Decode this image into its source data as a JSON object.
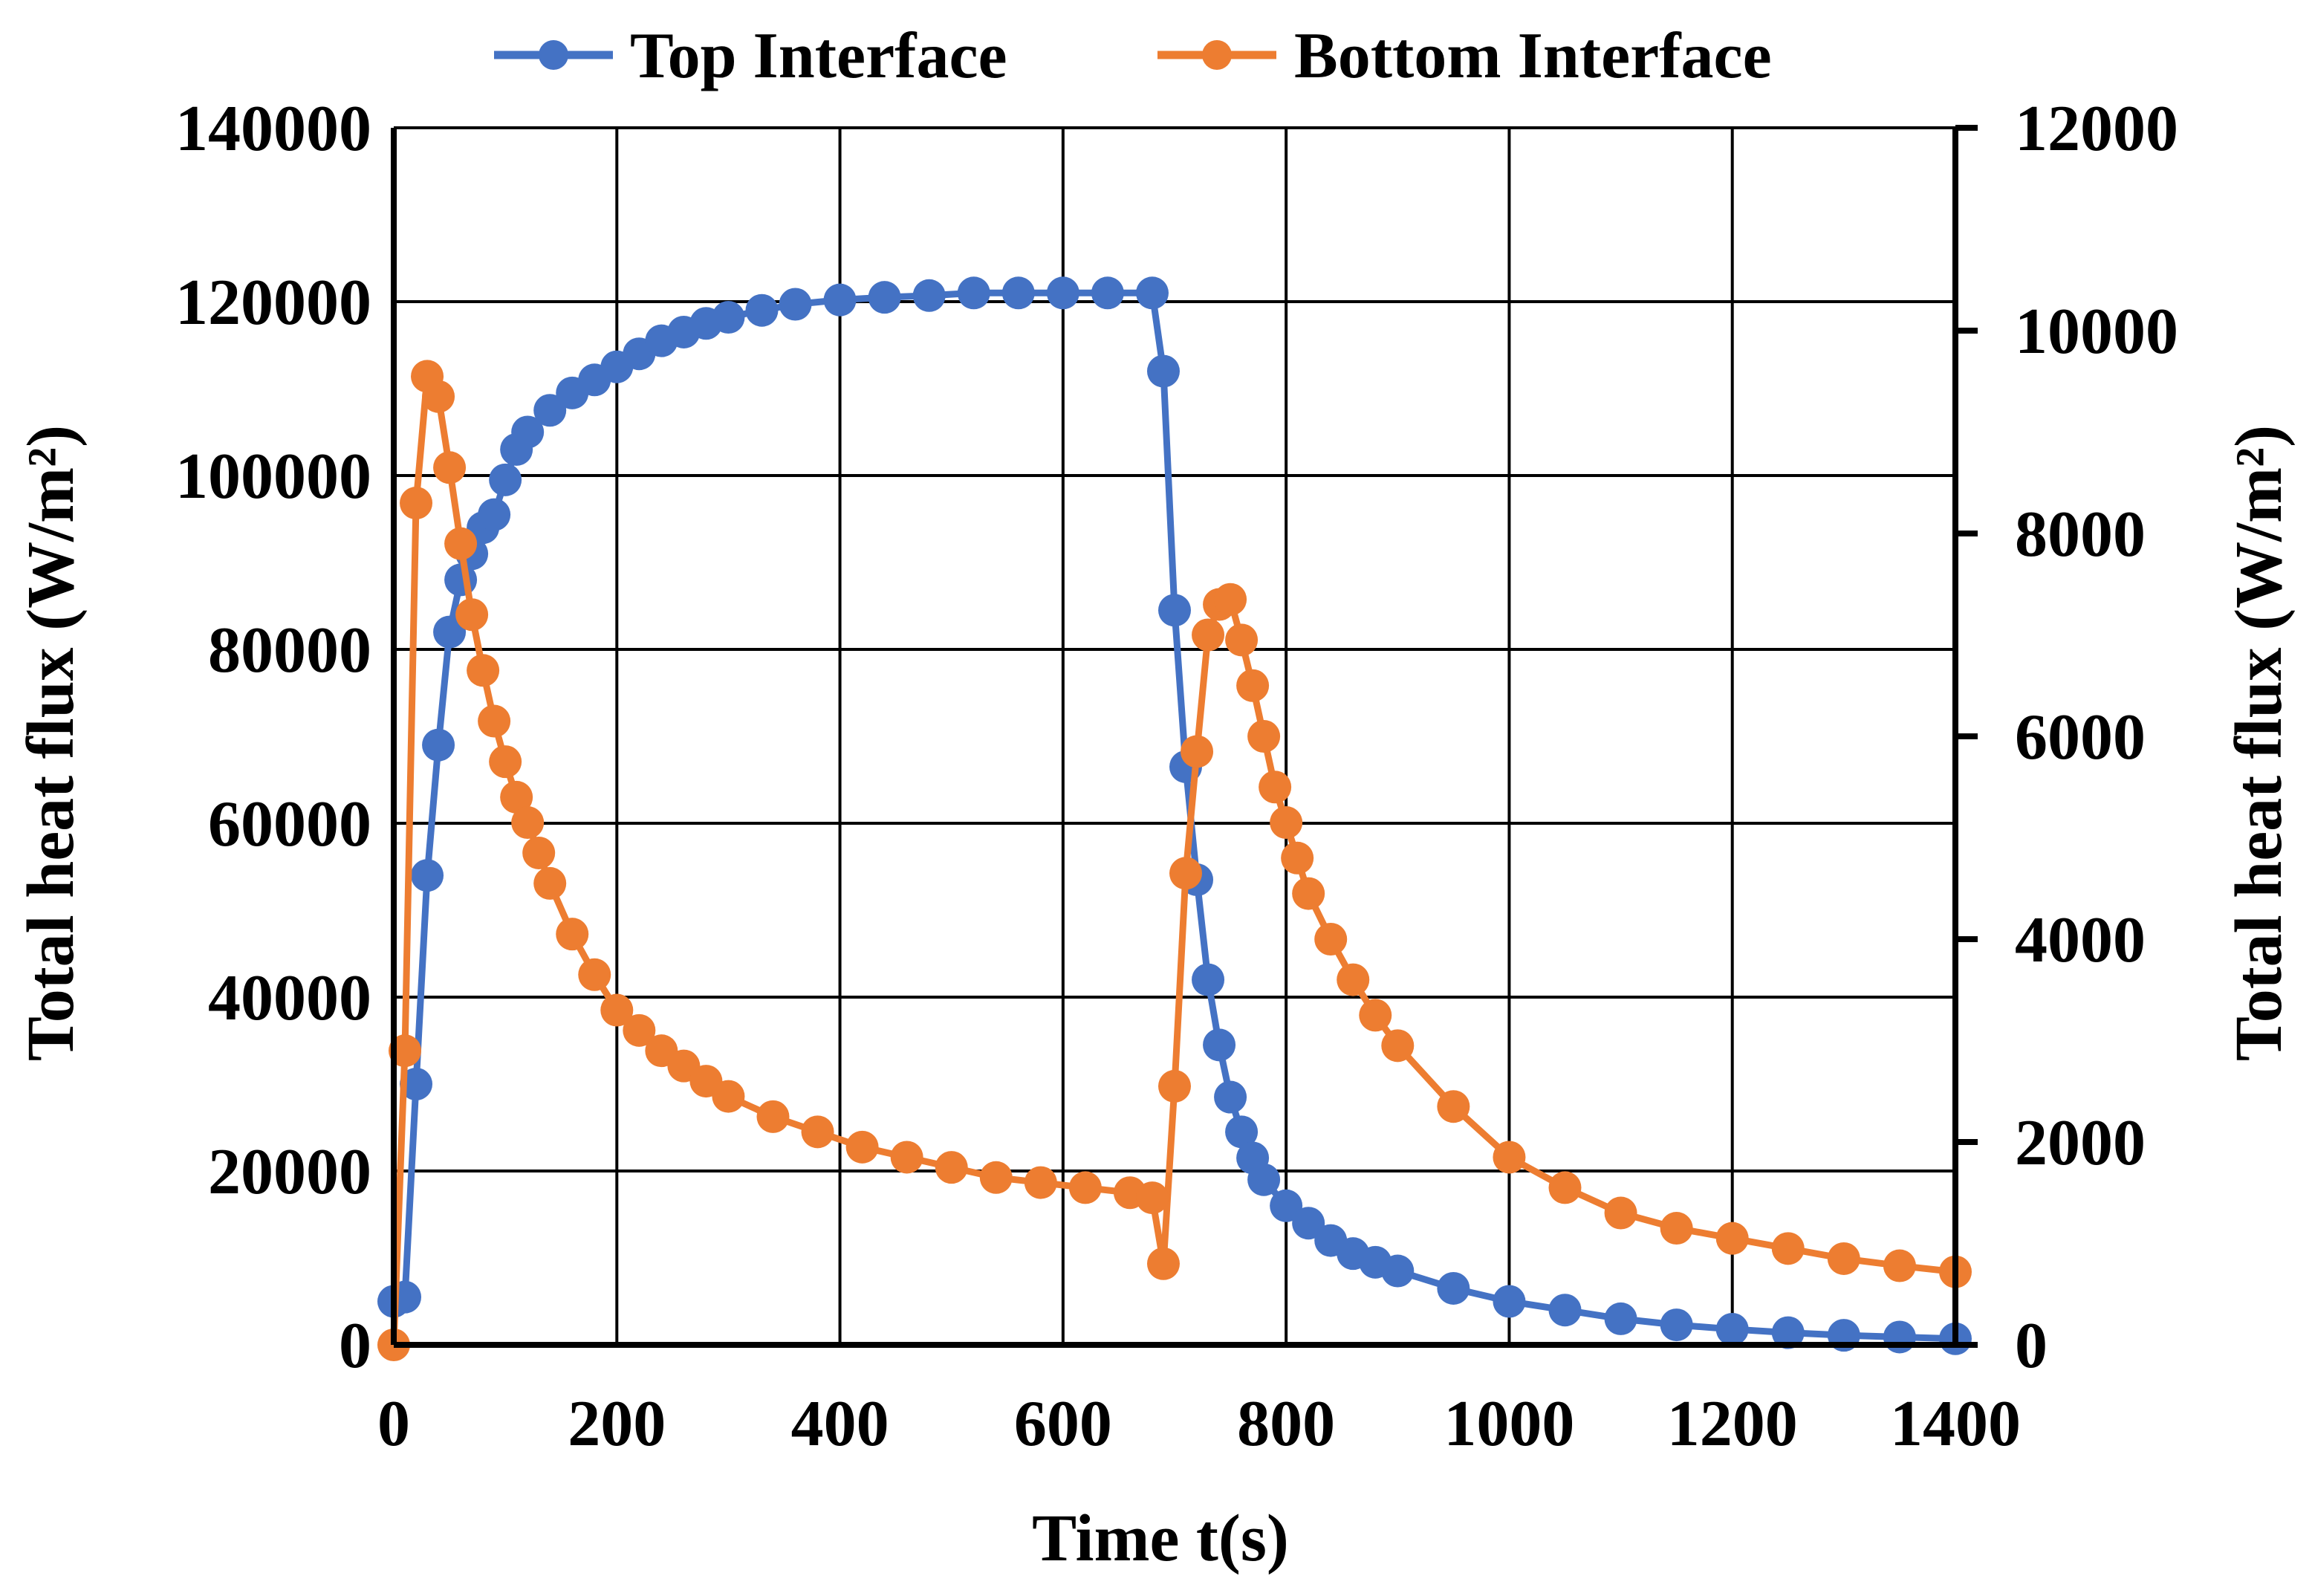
{
  "chart_data": {
    "type": "line",
    "title": "",
    "xlabel": "Time t(s)",
    "ylabel_left": "Total heat flux (W/m²)",
    "ylabel_right": "Total heat flux (W/m²)",
    "xlim": [
      0,
      1400
    ],
    "ylim_left": [
      0,
      140000
    ],
    "ylim_right": [
      0,
      12000
    ],
    "x_ticks": [
      "0",
      "200",
      "400",
      "600",
      "800",
      "1000",
      "1200",
      "1400"
    ],
    "y_ticks_left": [
      "0",
      "20000",
      "40000",
      "60000",
      "80000",
      "100000",
      "120000",
      "140000"
    ],
    "y_ticks_right": [
      "0",
      "2000",
      "4000",
      "6000",
      "8000",
      "10000",
      "12000"
    ],
    "grid": true,
    "legend_position": "top-center",
    "series": [
      {
        "name": "Top Interface",
        "axis": "left",
        "color": "#4472C4",
        "points": [
          [
            0,
            5000
          ],
          [
            10,
            5500
          ],
          [
            20,
            30000
          ],
          [
            30,
            54000
          ],
          [
            40,
            69000
          ],
          [
            50,
            82000
          ],
          [
            60,
            88000
          ],
          [
            70,
            91000
          ],
          [
            80,
            94000
          ],
          [
            90,
            95500
          ],
          [
            100,
            99500
          ],
          [
            110,
            103000
          ],
          [
            120,
            105000
          ],
          [
            140,
            107500
          ],
          [
            160,
            109500
          ],
          [
            180,
            111000
          ],
          [
            200,
            112500
          ],
          [
            220,
            114000
          ],
          [
            240,
            115500
          ],
          [
            260,
            116500
          ],
          [
            280,
            117500
          ],
          [
            300,
            118200
          ],
          [
            330,
            119000
          ],
          [
            360,
            119700
          ],
          [
            400,
            120200
          ],
          [
            440,
            120500
          ],
          [
            480,
            120700
          ],
          [
            520,
            121000
          ],
          [
            560,
            121000
          ],
          [
            600,
            121000
          ],
          [
            640,
            121000
          ],
          [
            680,
            121000
          ],
          [
            690,
            112000
          ],
          [
            700,
            84500
          ],
          [
            710,
            66500
          ],
          [
            720,
            53500
          ],
          [
            730,
            42000
          ],
          [
            740,
            34500
          ],
          [
            750,
            28500
          ],
          [
            760,
            24500
          ],
          [
            770,
            21500
          ],
          [
            780,
            19000
          ],
          [
            800,
            16000
          ],
          [
            820,
            14000
          ],
          [
            840,
            12000
          ],
          [
            860,
            10500
          ],
          [
            880,
            9500
          ],
          [
            900,
            8500
          ],
          [
            950,
            6500
          ],
          [
            1000,
            5000
          ],
          [
            1050,
            4000
          ],
          [
            1100,
            3000
          ],
          [
            1150,
            2300
          ],
          [
            1200,
            1800
          ],
          [
            1250,
            1400
          ],
          [
            1300,
            1100
          ],
          [
            1350,
            900
          ],
          [
            1400,
            700
          ]
        ]
      },
      {
        "name": "Bottom Interface",
        "axis": "right",
        "color": "#ED7D31",
        "points": [
          [
            0,
            0
          ],
          [
            10,
            2900
          ],
          [
            20,
            8300
          ],
          [
            30,
            9550
          ],
          [
            40,
            9350
          ],
          [
            50,
            8650
          ],
          [
            60,
            7900
          ],
          [
            70,
            7200
          ],
          [
            80,
            6650
          ],
          [
            90,
            6150
          ],
          [
            100,
            5750
          ],
          [
            110,
            5400
          ],
          [
            120,
            5150
          ],
          [
            130,
            4850
          ],
          [
            140,
            4550
          ],
          [
            160,
            4050
          ],
          [
            180,
            3650
          ],
          [
            200,
            3300
          ],
          [
            220,
            3100
          ],
          [
            240,
            2900
          ],
          [
            260,
            2750
          ],
          [
            280,
            2600
          ],
          [
            300,
            2450
          ],
          [
            340,
            2250
          ],
          [
            380,
            2100
          ],
          [
            420,
            1950
          ],
          [
            460,
            1850
          ],
          [
            500,
            1750
          ],
          [
            540,
            1650
          ],
          [
            580,
            1600
          ],
          [
            620,
            1550
          ],
          [
            660,
            1500
          ],
          [
            680,
            1450
          ],
          [
            690,
            800
          ],
          [
            700,
            2550
          ],
          [
            710,
            4650
          ],
          [
            720,
            5850
          ],
          [
            730,
            7000
          ],
          [
            740,
            7300
          ],
          [
            750,
            7350
          ],
          [
            760,
            6950
          ],
          [
            770,
            6500
          ],
          [
            780,
            6000
          ],
          [
            790,
            5500
          ],
          [
            800,
            5150
          ],
          [
            810,
            4800
          ],
          [
            820,
            4450
          ],
          [
            840,
            4000
          ],
          [
            860,
            3600
          ],
          [
            880,
            3250
          ],
          [
            900,
            2950
          ],
          [
            950,
            2350
          ],
          [
            1000,
            1850
          ],
          [
            1050,
            1550
          ],
          [
            1100,
            1300
          ],
          [
            1150,
            1150
          ],
          [
            1200,
            1050
          ],
          [
            1250,
            950
          ],
          [
            1300,
            850
          ],
          [
            1350,
            780
          ],
          [
            1400,
            720
          ]
        ]
      }
    ]
  }
}
